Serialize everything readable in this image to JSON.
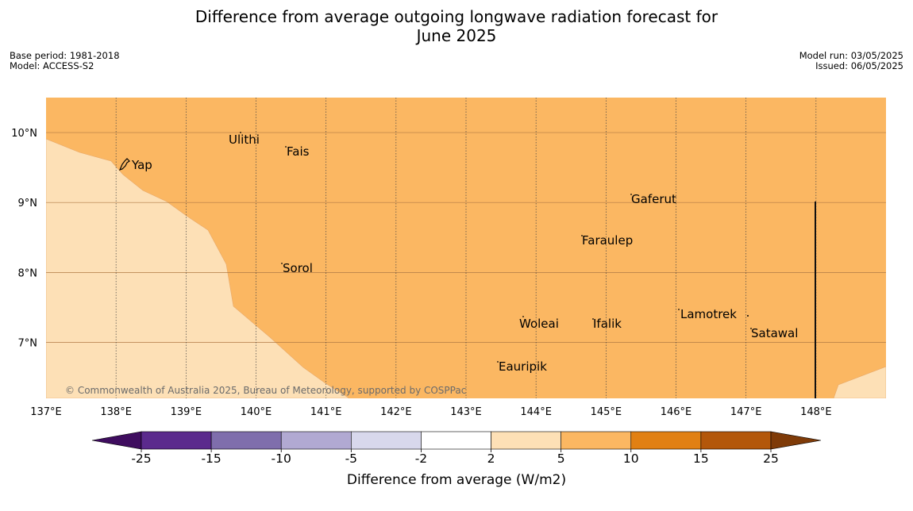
{
  "title_line1": "Difference from average outgoing longwave radiation forecast for",
  "title_line2": "June 2025",
  "base_period": "Base period: 1981-2018",
  "model": "Model: ACCESS-S2",
  "model_run": "Model run: 03/05/2025",
  "issued": "Issued: 06/05/2025",
  "copyright": "© Commonwealth of Australia 2025, Bureau of Meteorology, supported by COSPPac",
  "map": {
    "lon_range": [
      137,
      149
    ],
    "lat_range": [
      6.2,
      10.5
    ],
    "lon_ticks": [
      "137°E",
      "138°E",
      "139°E",
      "140°E",
      "141°E",
      "142°E",
      "143°E",
      "144°E",
      "145°E",
      "146°E",
      "147°E",
      "148°E"
    ],
    "lat_ticks": [
      "10°N",
      "9°N",
      "8°N",
      "7°N"
    ],
    "region_colors": {
      "2 to 5": "#fde0b6",
      "5 to 10": "#fbb762"
    },
    "places": [
      {
        "name": "Yap"
      },
      {
        "name": "Ulithi"
      },
      {
        "name": "Fais"
      },
      {
        "name": "Gaferut"
      },
      {
        "name": "Faraulep"
      },
      {
        "name": "Sorol"
      },
      {
        "name": "Lamotrek"
      },
      {
        "name": "Satawal"
      },
      {
        "name": "Woleai"
      },
      {
        "name": "Ifalik"
      },
      {
        "name": "Eauripik"
      }
    ]
  },
  "colorbar": {
    "label": "Difference from average (W/m2)",
    "ticks": [
      "-25",
      "-15",
      "-10",
      "-5",
      "-2",
      "2",
      "5",
      "10",
      "15",
      "25"
    ],
    "colors": [
      "#3f0d5f",
      "#5b2a8d",
      "#7f6eac",
      "#b1a9d2",
      "#d8d8ec",
      "#ffffff",
      "#fde0b6",
      "#fbb762",
      "#e18013",
      "#b3570a",
      "#7f3b08"
    ]
  }
}
